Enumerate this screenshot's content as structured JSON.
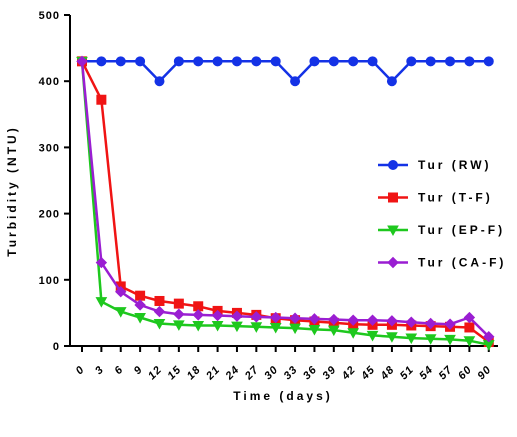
{
  "chart_data": {
    "type": "line",
    "xlabel": "Time (days)",
    "ylabel": "Turbidity (NTU)",
    "ylim": [
      0,
      500
    ],
    "yticks": [
      0,
      100,
      200,
      300,
      400,
      500
    ],
    "x": [
      "0",
      "3",
      "6",
      "9",
      "12",
      "15",
      "18",
      "21",
      "24",
      "27",
      "30",
      "33",
      "36",
      "39",
      "42",
      "45",
      "48",
      "51",
      "54",
      "57",
      "60",
      "90"
    ],
    "legend_position": "right",
    "series": [
      {
        "name": "Tur (RW)",
        "color": "#1432e6",
        "marker": "circle",
        "values": [
          430,
          430,
          430,
          430,
          400,
          430,
          430,
          430,
          430,
          430,
          430,
          400,
          430,
          430,
          430,
          430,
          400,
          430,
          430,
          430,
          430,
          430
        ]
      },
      {
        "name": "Tur (T-F)",
        "color": "#f01414",
        "marker": "square",
        "values": [
          430,
          372,
          90,
          76,
          68,
          64,
          60,
          53,
          50,
          47,
          42,
          39,
          37,
          35,
          33,
          32,
          32,
          31,
          30,
          29,
          28,
          6
        ]
      },
      {
        "name": "Tur (EP-F)",
        "color": "#1ec81e",
        "marker": "triangle-down",
        "values": [
          430,
          67,
          52,
          43,
          34,
          32,
          31,
          31,
          30,
          29,
          28,
          27,
          25,
          24,
          20,
          16,
          14,
          12,
          11,
          10,
          8,
          2
        ]
      },
      {
        "name": "Tur (CA-F)",
        "color": "#9a1ed2",
        "marker": "diamond",
        "values": [
          430,
          126,
          82,
          62,
          52,
          48,
          47,
          46,
          45,
          44,
          43,
          42,
          41,
          40,
          39,
          39,
          38,
          36,
          34,
          33,
          43,
          14
        ]
      }
    ]
  }
}
